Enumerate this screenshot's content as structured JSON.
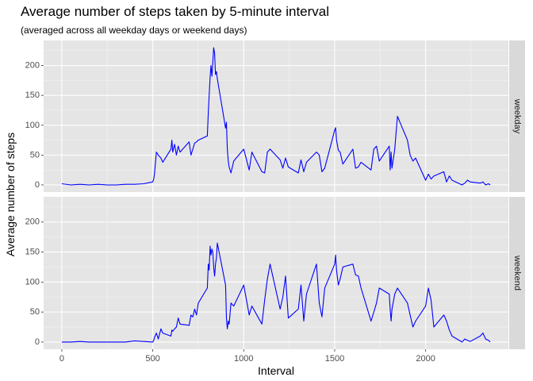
{
  "chart_data": {
    "type": "line",
    "title": "Average number of steps taken by 5-minute interval",
    "subtitle": "(averaged across all weekday days or weekend days)",
    "xlabel": "Interval",
    "ylabel": "Average number of steps",
    "xlim": [
      -100,
      2455
    ],
    "ylim": [
      -12,
      242
    ],
    "x_ticks": [
      0,
      500,
      1000,
      1500,
      2000
    ],
    "y_ticks": [
      0,
      50,
      100,
      150,
      200
    ],
    "grid": true,
    "line_color": "#0000ff",
    "panel_bg": "#e5e5e5",
    "strip_bg": "#d9d9d9",
    "facets": [
      {
        "label": "weekday",
        "x": [
          0,
          50,
          100,
          150,
          200,
          250,
          300,
          350,
          400,
          450,
          500,
          505,
          510,
          520,
          530,
          545,
          555,
          600,
          605,
          610,
          620,
          630,
          640,
          650,
          700,
          710,
          720,
          730,
          740,
          750,
          800,
          805,
          810,
          815,
          820,
          825,
          830,
          835,
          840,
          845,
          850,
          855,
          900,
          905,
          910,
          915,
          920,
          930,
          945,
          1000,
          1030,
          1045,
          1100,
          1115,
          1130,
          1145,
          1200,
          1215,
          1230,
          1245,
          1300,
          1315,
          1330,
          1345,
          1400,
          1415,
          1430,
          1445,
          1500,
          1505,
          1510,
          1520,
          1530,
          1545,
          1600,
          1615,
          1630,
          1645,
          1700,
          1715,
          1730,
          1745,
          1800,
          1805,
          1810,
          1815,
          1830,
          1845,
          1900,
          1915,
          1930,
          1945,
          2000,
          2015,
          2030,
          2045,
          2100,
          2115,
          2130,
          2145,
          2200,
          2215,
          2230,
          2245,
          2300,
          2315,
          2330,
          2345,
          2355
        ],
        "y": [
          2,
          0,
          1,
          0,
          1,
          0,
          0,
          1,
          1,
          2,
          5,
          10,
          20,
          55,
          50,
          45,
          38,
          60,
          75,
          55,
          68,
          50,
          65,
          55,
          72,
          50,
          60,
          70,
          72,
          75,
          82,
          120,
          150,
          180,
          200,
          182,
          205,
          230,
          220,
          185,
          190,
          178,
          95,
          105,
          60,
          40,
          30,
          20,
          40,
          60,
          25,
          55,
          22,
          20,
          55,
          60,
          42,
          28,
          45,
          30,
          20,
          42,
          22,
          38,
          55,
          50,
          22,
          28,
          92,
          96,
          75,
          58,
          55,
          35,
          60,
          28,
          30,
          38,
          25,
          60,
          65,
          40,
          65,
          25,
          55,
          28,
          60,
          115,
          75,
          50,
          40,
          45,
          8,
          18,
          10,
          15,
          22,
          5,
          15,
          8,
          0,
          3,
          8,
          5,
          3,
          5,
          0,
          2,
          0
        ],
        "point_count": 288
      },
      {
        "label": "weekend",
        "x": [
          0,
          50,
          100,
          150,
          200,
          250,
          300,
          350,
          400,
          450,
          500,
          505,
          510,
          520,
          530,
          545,
          555,
          600,
          605,
          610,
          620,
          630,
          640,
          650,
          700,
          710,
          720,
          730,
          740,
          750,
          800,
          805,
          810,
          815,
          820,
          825,
          830,
          835,
          840,
          845,
          850,
          855,
          900,
          905,
          910,
          915,
          920,
          930,
          945,
          1000,
          1030,
          1045,
          1100,
          1115,
          1130,
          1145,
          1200,
          1215,
          1230,
          1245,
          1300,
          1315,
          1330,
          1345,
          1400,
          1415,
          1430,
          1445,
          1500,
          1505,
          1510,
          1520,
          1530,
          1545,
          1600,
          1615,
          1630,
          1645,
          1700,
          1715,
          1730,
          1745,
          1800,
          1805,
          1810,
          1815,
          1830,
          1845,
          1900,
          1915,
          1930,
          1945,
          2000,
          2015,
          2030,
          2045,
          2100,
          2115,
          2130,
          2145,
          2200,
          2215,
          2230,
          2245,
          2300,
          2315,
          2330,
          2345,
          2355
        ],
        "y": [
          0,
          0,
          1,
          0,
          0,
          0,
          0,
          0,
          2,
          1,
          0,
          3,
          8,
          15,
          5,
          22,
          15,
          10,
          20,
          18,
          22,
          25,
          40,
          30,
          28,
          45,
          42,
          55,
          45,
          65,
          90,
          130,
          120,
          160,
          145,
          155,
          150,
          125,
          110,
          130,
          140,
          165,
          95,
          40,
          22,
          35,
          30,
          65,
          60,
          95,
          45,
          60,
          30,
          70,
          105,
          130,
          55,
          75,
          110,
          40,
          55,
          95,
          35,
          80,
          130,
          65,
          42,
          90,
          130,
          145,
          120,
          95,
          105,
          125,
          130,
          112,
          110,
          90,
          35,
          50,
          65,
          90,
          80,
          55,
          35,
          55,
          80,
          90,
          65,
          45,
          25,
          35,
          60,
          90,
          70,
          25,
          45,
          35,
          20,
          10,
          0,
          5,
          3,
          1,
          10,
          15,
          5,
          3,
          0
        ],
        "point_count": 288
      }
    ]
  }
}
